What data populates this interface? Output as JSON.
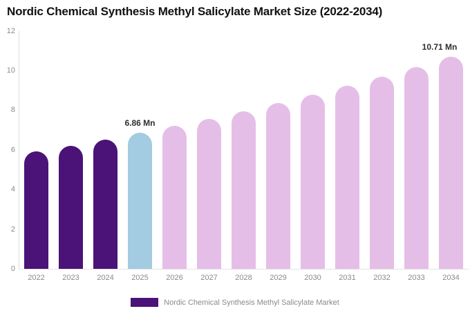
{
  "title": "Nordic Chemical Synthesis Methyl Salicylate Market Size (2022-2034)",
  "legend": {
    "label": "Nordic Chemical Synthesis Methyl Salicylate Market",
    "swatch_color": "#4b1278"
  },
  "colors": {
    "historical": "#4b1278",
    "highlight": "#a3cbe2",
    "forecast": "#e5bee7",
    "axis_line": "#dcdcdc",
    "tick_text": "#8a8a8a",
    "data_label_text": "#2d2d2d"
  },
  "chart_data": {
    "type": "bar",
    "title": "Nordic Chemical Synthesis Methyl Salicylate Market Size (2022-2034)",
    "series_name": "Nordic Chemical Synthesis Methyl Salicylate Market",
    "categories": [
      "2022",
      "2023",
      "2024",
      "2025",
      "2026",
      "2027",
      "2028",
      "2029",
      "2030",
      "2031",
      "2032",
      "2033",
      "2034"
    ],
    "values": [
      5.91,
      6.21,
      6.53,
      6.86,
      7.21,
      7.57,
      7.96,
      8.36,
      8.78,
      9.23,
      9.7,
      10.19,
      10.71
    ],
    "unit": "Mn",
    "bar_color_keys": [
      "historical",
      "historical",
      "historical",
      "highlight",
      "forecast",
      "forecast",
      "forecast",
      "forecast",
      "forecast",
      "forecast",
      "forecast",
      "forecast",
      "forecast"
    ],
    "yticks": [
      0,
      2,
      4,
      6,
      8,
      10,
      12
    ],
    "ylim": [
      0,
      12
    ],
    "xlabel": "",
    "ylabel": "",
    "grid": false,
    "legend_position": "bottom",
    "annotations": [
      {
        "category": "2025",
        "text": "6.86 Mn"
      },
      {
        "category": "2034",
        "text": "10.71 Mn"
      }
    ]
  }
}
